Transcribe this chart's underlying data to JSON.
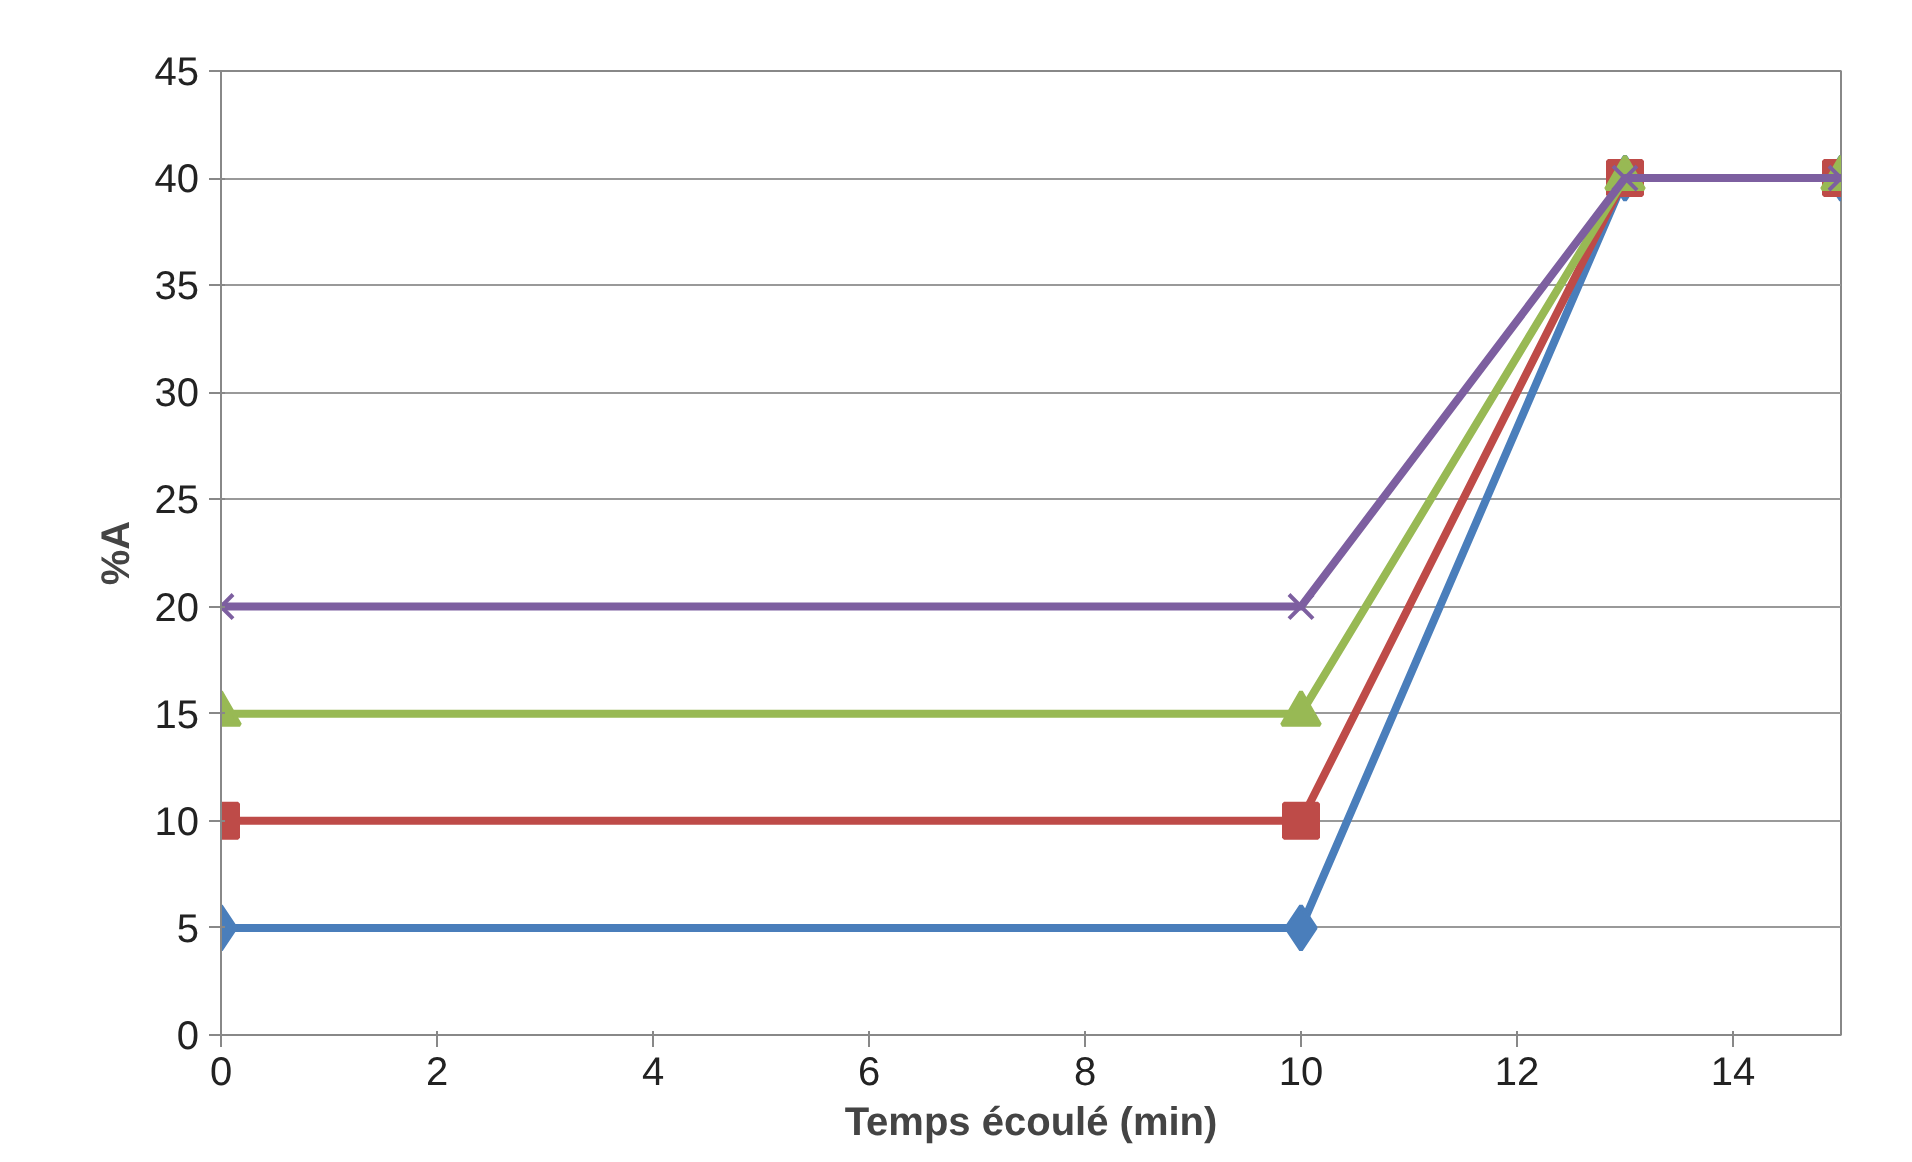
{
  "chart_data": {
    "type": "line",
    "xlabel": "Temps écoulé (min)",
    "ylabel": "%A",
    "x": [
      0,
      10,
      13,
      15
    ],
    "series": [
      {
        "color": "#4a7ebb",
        "values": [
          5,
          5,
          40,
          40
        ],
        "marker": "diamond"
      },
      {
        "color": "#be4b48",
        "values": [
          10,
          10,
          40,
          40
        ],
        "marker": "square"
      },
      {
        "color": "#98b954",
        "values": [
          15,
          15,
          40,
          40
        ],
        "marker": "triangle"
      },
      {
        "color": "#7d5fa0",
        "values": [
          20,
          20,
          40,
          40
        ],
        "marker": "cross"
      }
    ],
    "xlim": [
      0,
      15
    ],
    "xticks": [
      0,
      2,
      4,
      6,
      8,
      10,
      12,
      14
    ],
    "ylim": [
      0,
      45
    ],
    "yticks": [
      0,
      5,
      10,
      15,
      20,
      25,
      30,
      35,
      40,
      45
    ],
    "grid": "y",
    "line_style": "solid"
  }
}
